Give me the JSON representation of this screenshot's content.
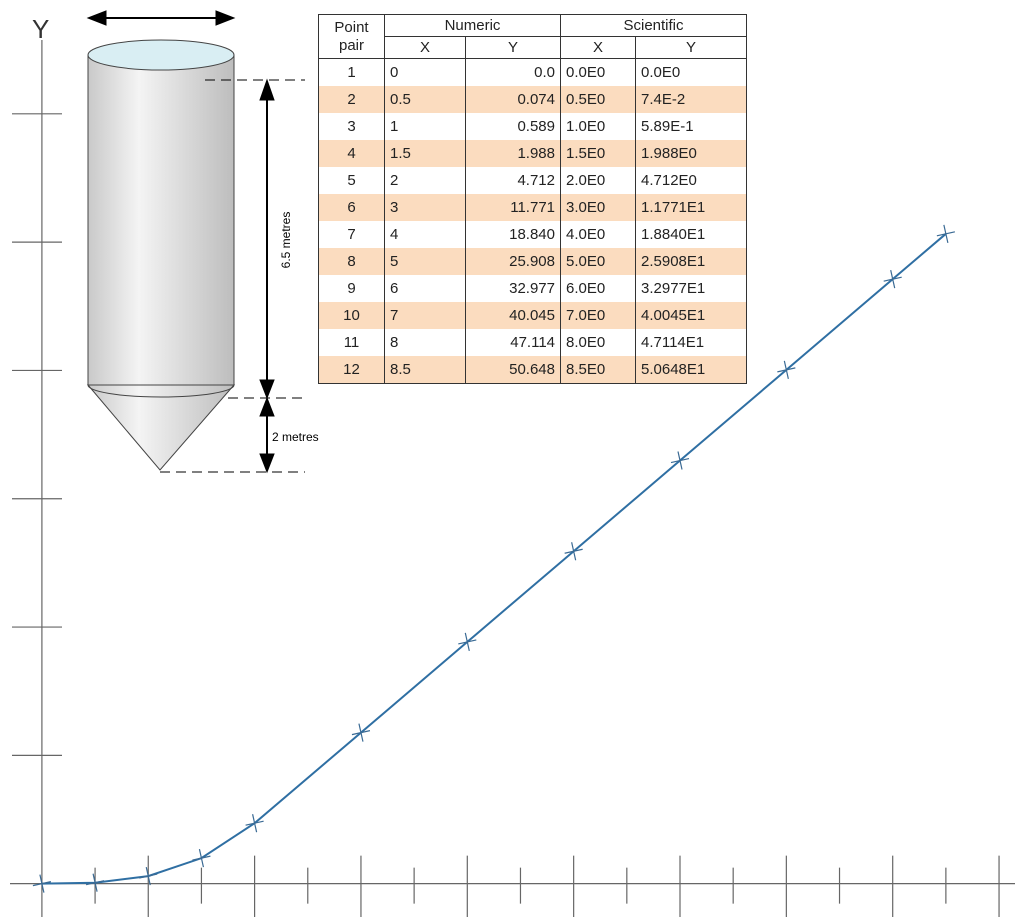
{
  "chart_data": {
    "type": "line",
    "y_label": "Y",
    "x": [
      0,
      0.5,
      1,
      1.5,
      2,
      3,
      4,
      5,
      6,
      7,
      8,
      8.5
    ],
    "series": [
      {
        "color": "#2f6fa3",
        "values": [
          0.0,
          0.074,
          0.589,
          1.988,
          4.712,
          11.771,
          18.84,
          25.908,
          32.977,
          40.045,
          47.114,
          50.648
        ]
      }
    ],
    "xlim": [
      -0.3,
      9.15
    ],
    "ylim": [
      -2.6,
      66.3
    ],
    "xticks": [
      0.5,
      1,
      1.5,
      2,
      2.5,
      3,
      3.5,
      4,
      4.5,
      5,
      5.5,
      6,
      6.5,
      7,
      7.5,
      8,
      8.5,
      9
    ],
    "yticks": [
      10,
      20,
      30,
      40,
      50,
      60
    ]
  },
  "diagram": {
    "height_label": "6.5 metres",
    "cone_label": "2 metres"
  },
  "table": {
    "header": {
      "point_pair": "Point pair",
      "numeric": "Numeric",
      "scientific": "Scientific",
      "sub": [
        "X",
        "Y",
        "X",
        "Y"
      ]
    },
    "rows": [
      [
        "1",
        "0",
        "0.0",
        "0.0E0",
        "0.0E0"
      ],
      [
        "2",
        "0.5",
        "0.074",
        "0.5E0",
        "7.4E-2"
      ],
      [
        "3",
        "1",
        "0.589",
        "1.0E0",
        "5.89E-1"
      ],
      [
        "4",
        "1.5",
        "1.988",
        "1.5E0",
        "1.988E0"
      ],
      [
        "5",
        "2",
        "4.712",
        "2.0E0",
        "4.712E0"
      ],
      [
        "6",
        "3",
        "11.771",
        "3.0E0",
        "1.1771E1"
      ],
      [
        "7",
        "4",
        "18.840",
        "4.0E0",
        "1.8840E1"
      ],
      [
        "8",
        "5",
        "25.908",
        "5.0E0",
        "2.5908E1"
      ],
      [
        "9",
        "6",
        "32.977",
        "6.0E0",
        "3.2977E1"
      ],
      [
        "10",
        "7",
        "40.045",
        "7.0E0",
        "4.0045E1"
      ],
      [
        "11",
        "8",
        "47.114",
        "8.0E0",
        "4.7114E1"
      ],
      [
        "12",
        "8.5",
        "50.648",
        "8.5E0",
        "5.0648E1"
      ]
    ]
  }
}
